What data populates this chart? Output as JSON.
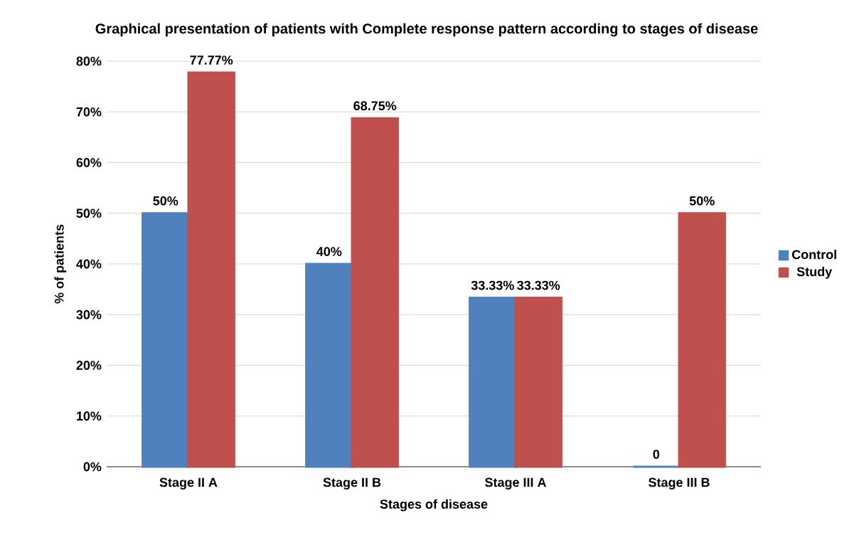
{
  "chart_data": {
    "type": "bar",
    "title": "Graphical presentation of patients with Complete response pattern according to stages of disease",
    "xlabel": "Stages of disease",
    "ylabel": "% of patients",
    "categories": [
      "Stage II A",
      "Stage II B",
      "Stage III A",
      "Stage III B"
    ],
    "series": [
      {
        "name": "Control",
        "color": "#4f81bd",
        "values": [
          50,
          40,
          33.33,
          0
        ],
        "value_labels": [
          "50%",
          "40%",
          "33.33%",
          "0"
        ]
      },
      {
        "name": "Study",
        "color": "#c0504d",
        "values": [
          77.77,
          68.75,
          33.33,
          50
        ],
        "value_labels": [
          "77.77%",
          "68.75%",
          "33.33%",
          "50%"
        ]
      }
    ],
    "ylim": [
      0,
      80
    ],
    "yticks": [
      {
        "value": 0,
        "label": "0%"
      },
      {
        "value": 10,
        "label": "10%"
      },
      {
        "value": 20,
        "label": "20%"
      },
      {
        "value": 30,
        "label": "30%"
      },
      {
        "value": 40,
        "label": "40%"
      },
      {
        "value": 50,
        "label": "50%"
      },
      {
        "value": 60,
        "label": "60%"
      },
      {
        "value": 70,
        "label": "70%"
      },
      {
        "value": 80,
        "label": "80%"
      }
    ],
    "grid": "y",
    "legend": "right"
  }
}
